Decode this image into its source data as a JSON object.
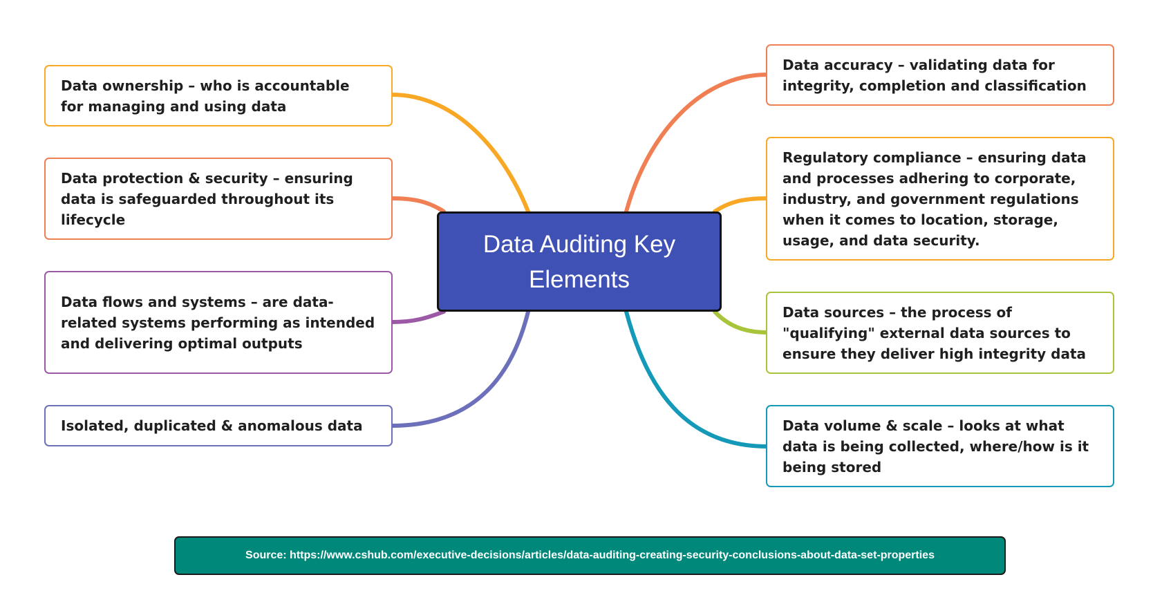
{
  "center": {
    "title": "Data Auditing Key Elements",
    "color": "#3f51b5"
  },
  "left_nodes": [
    {
      "id": "data-ownership",
      "text": "Data ownership – who is accountable for managing and using data",
      "color": "#f9a825"
    },
    {
      "id": "data-protection",
      "text": "Data protection & security – ensuring data is safeguarded throughout its lifecycle",
      "color": "#f07f53"
    },
    {
      "id": "data-flows",
      "text": "Data flows and systems – are data-related systems performing as intended and delivering optimal outputs",
      "color": "#9b59a6"
    },
    {
      "id": "isolated-data",
      "text": "Isolated, duplicated & anomalous data",
      "color": "#6c6fba"
    }
  ],
  "right_nodes": [
    {
      "id": "data-accuracy",
      "text": "Data accuracy – validating data for integrity, completion and classification",
      "color": "#f07f53"
    },
    {
      "id": "regulatory-compliance",
      "text": "Regulatory compliance – ensuring data and processes adhering to corporate, industry, and government regulations when it comes to location, storage, usage, and data security.",
      "color": "#f9a825"
    },
    {
      "id": "data-sources",
      "text": "Data sources – the process of \"qualifying\" external data sources to ensure they deliver high integrity data",
      "color": "#a8c43a"
    },
    {
      "id": "data-volume",
      "text": "Data volume & scale – looks at what data is being collected, where/how is it being stored",
      "color": "#1499b8"
    }
  ],
  "source": {
    "text": "Source: https://www.cshub.com/executive-decisions/articles/data-auditing-creating-security-conclusions-about-data-set-properties",
    "color": "#00897b"
  }
}
